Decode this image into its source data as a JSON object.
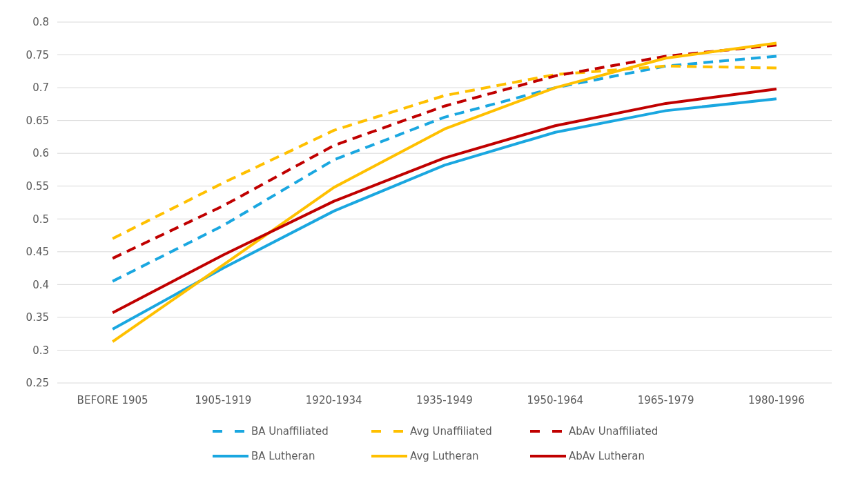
{
  "chart_data": {
    "type": "line",
    "categories": [
      "BEFORE 1905",
      "1905-1919",
      "1920-1934",
      "1935-1949",
      "1950-1964",
      "1965-1979",
      "1980-1996"
    ],
    "ylim": [
      0.25,
      0.8
    ],
    "yticks": [
      0.25,
      0.3,
      0.35,
      0.4,
      0.45,
      0.5,
      0.55,
      0.6,
      0.65,
      0.7,
      0.75,
      0.8
    ],
    "grid": "y",
    "legend": "bottom",
    "marker": "none",
    "series": [
      {
        "name": "BA Unaffiliated",
        "color": "#1aa7e0",
        "line_style": "dashed",
        "values": [
          0.405,
          0.49,
          0.59,
          0.655,
          0.7,
          0.733,
          0.748
        ]
      },
      {
        "name": "Avg Unaffiliated",
        "color": "#ffc000",
        "line_style": "dashed",
        "values": [
          0.47,
          0.555,
          0.635,
          0.688,
          0.72,
          0.733,
          0.73
        ]
      },
      {
        "name": "AbAv Unaffiliated",
        "color": "#c00000",
        "line_style": "dashed",
        "values": [
          0.44,
          0.52,
          0.612,
          0.672,
          0.718,
          0.748,
          0.765
        ]
      },
      {
        "name": "BA Lutheran",
        "color": "#1aa7e0",
        "line_style": "solid",
        "values": [
          0.332,
          0.425,
          0.512,
          0.582,
          0.632,
          0.665,
          0.683
        ]
      },
      {
        "name": "Avg Lutheran",
        "color": "#ffc000",
        "line_style": "solid",
        "values": [
          0.313,
          0.43,
          0.548,
          0.637,
          0.7,
          0.745,
          0.768
        ]
      },
      {
        "name": "AbAv Lutheran",
        "color": "#c00000",
        "line_style": "solid",
        "values": [
          0.357,
          0.445,
          0.527,
          0.593,
          0.642,
          0.676,
          0.698
        ]
      }
    ]
  }
}
